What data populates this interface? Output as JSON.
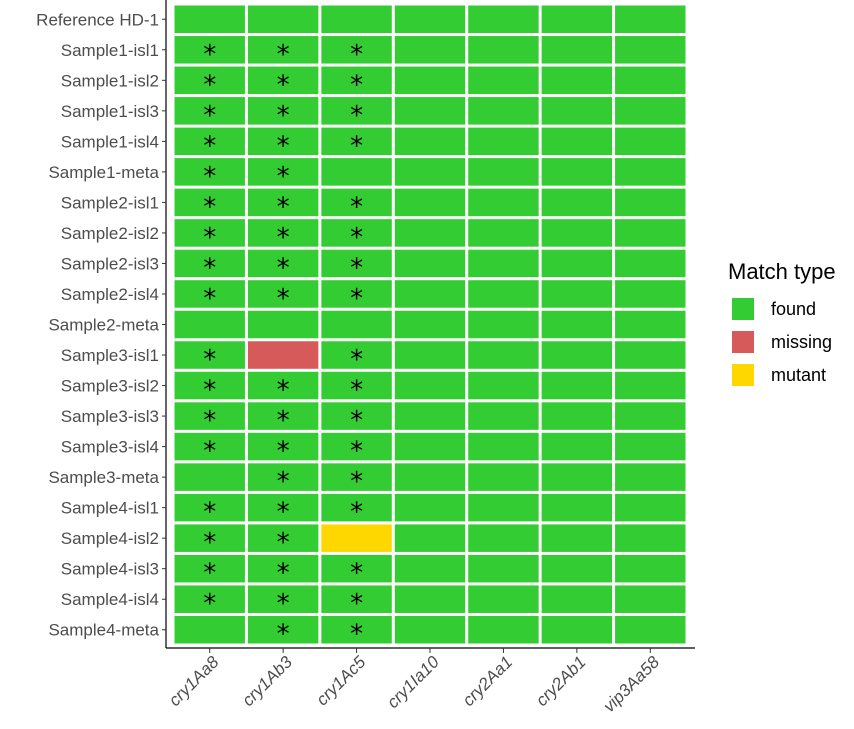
{
  "chart_data": {
    "type": "heatmap",
    "x_categories": [
      "cry1Aa8",
      "cry1Ab3",
      "cry1Ac5",
      "cry1Ia10",
      "cry2Aa1",
      "cry2Ab1",
      "vip3Aa58"
    ],
    "y_categories": [
      "Reference HD-1",
      "Sample1-isl1",
      "Sample1-isl2",
      "Sample1-isl3",
      "Sample1-isl4",
      "Sample1-meta",
      "Sample2-isl1",
      "Sample2-isl2",
      "Sample2-isl3",
      "Sample2-isl4",
      "Sample2-meta",
      "Sample3-isl1",
      "Sample3-isl2",
      "Sample3-isl3",
      "Sample3-isl4",
      "Sample3-meta",
      "Sample4-isl1",
      "Sample4-isl2",
      "Sample4-isl3",
      "Sample4-isl4",
      "Sample4-meta"
    ],
    "values": [
      [
        "found",
        "found",
        "found",
        "found",
        "found",
        "found",
        "found"
      ],
      [
        "found",
        "found",
        "found",
        "found",
        "found",
        "found",
        "found"
      ],
      [
        "found",
        "found",
        "found",
        "found",
        "found",
        "found",
        "found"
      ],
      [
        "found",
        "found",
        "found",
        "found",
        "found",
        "found",
        "found"
      ],
      [
        "found",
        "found",
        "found",
        "found",
        "found",
        "found",
        "found"
      ],
      [
        "found",
        "found",
        "found",
        "found",
        "found",
        "found",
        "found"
      ],
      [
        "found",
        "found",
        "found",
        "found",
        "found",
        "found",
        "found"
      ],
      [
        "found",
        "found",
        "found",
        "found",
        "found",
        "found",
        "found"
      ],
      [
        "found",
        "found",
        "found",
        "found",
        "found",
        "found",
        "found"
      ],
      [
        "found",
        "found",
        "found",
        "found",
        "found",
        "found",
        "found"
      ],
      [
        "found",
        "found",
        "found",
        "found",
        "found",
        "found",
        "found"
      ],
      [
        "found",
        "missing",
        "found",
        "found",
        "found",
        "found",
        "found"
      ],
      [
        "found",
        "found",
        "found",
        "found",
        "found",
        "found",
        "found"
      ],
      [
        "found",
        "found",
        "found",
        "found",
        "found",
        "found",
        "found"
      ],
      [
        "found",
        "found",
        "found",
        "found",
        "found",
        "found",
        "found"
      ],
      [
        "found",
        "found",
        "found",
        "found",
        "found",
        "found",
        "found"
      ],
      [
        "found",
        "found",
        "found",
        "found",
        "found",
        "found",
        "found"
      ],
      [
        "found",
        "found",
        "mutant",
        "found",
        "found",
        "found",
        "found"
      ],
      [
        "found",
        "found",
        "found",
        "found",
        "found",
        "found",
        "found"
      ],
      [
        "found",
        "found",
        "found",
        "found",
        "found",
        "found",
        "found"
      ],
      [
        "found",
        "found",
        "found",
        "found",
        "found",
        "found",
        "found"
      ]
    ],
    "stars": [
      [
        0,
        0,
        0,
        0,
        0,
        0,
        0
      ],
      [
        1,
        1,
        1,
        0,
        0,
        0,
        0
      ],
      [
        1,
        1,
        1,
        0,
        0,
        0,
        0
      ],
      [
        1,
        1,
        1,
        0,
        0,
        0,
        0
      ],
      [
        1,
        1,
        1,
        0,
        0,
        0,
        0
      ],
      [
        1,
        1,
        0,
        0,
        0,
        0,
        0
      ],
      [
        1,
        1,
        1,
        0,
        0,
        0,
        0
      ],
      [
        1,
        1,
        1,
        0,
        0,
        0,
        0
      ],
      [
        1,
        1,
        1,
        0,
        0,
        0,
        0
      ],
      [
        1,
        1,
        1,
        0,
        0,
        0,
        0
      ],
      [
        0,
        0,
        0,
        0,
        0,
        0,
        0
      ],
      [
        1,
        0,
        1,
        0,
        0,
        0,
        0
      ],
      [
        1,
        1,
        1,
        0,
        0,
        0,
        0
      ],
      [
        1,
        1,
        1,
        0,
        0,
        0,
        0
      ],
      [
        1,
        1,
        1,
        0,
        0,
        0,
        0
      ],
      [
        0,
        1,
        1,
        0,
        0,
        0,
        0
      ],
      [
        1,
        1,
        1,
        0,
        0,
        0,
        0
      ],
      [
        1,
        1,
        0,
        0,
        0,
        0,
        0
      ],
      [
        1,
        1,
        1,
        0,
        0,
        0,
        0
      ],
      [
        1,
        1,
        1,
        0,
        0,
        0,
        0
      ],
      [
        0,
        1,
        1,
        0,
        0,
        0,
        0
      ]
    ],
    "star_symbol": "*",
    "legend": {
      "title": "Match type",
      "placement": "right",
      "entries": [
        {
          "label": "found",
          "color": "#33cc33"
        },
        {
          "label": "missing",
          "color": "#d65a5a"
        },
        {
          "label": "mutant",
          "color": "#ffd700"
        }
      ]
    },
    "xlabel": "",
    "ylabel": "",
    "title": "",
    "grid": false
  }
}
